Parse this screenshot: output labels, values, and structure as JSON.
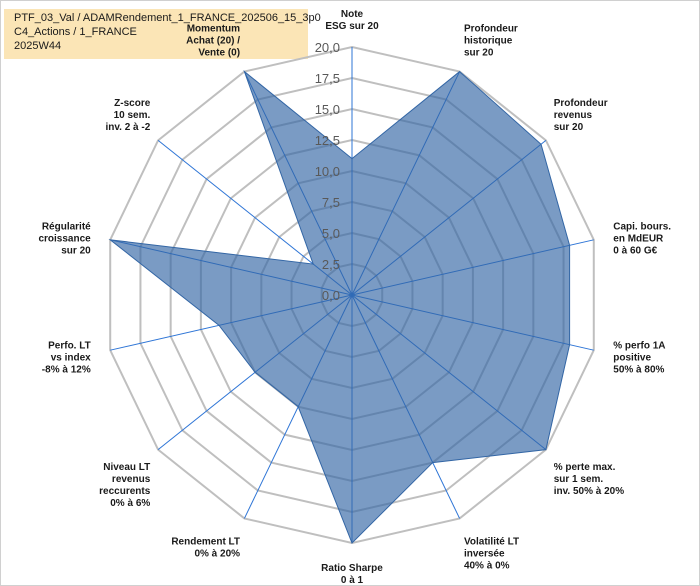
{
  "title": {
    "lines": [
      "PTF_03_Val / ADAMRendement_1_FRANCE_202506_15_3p0",
      "C4_Actions / 1_FRANCE",
      "2025W44"
    ]
  },
  "colors": {
    "fill": "#3366a5",
    "line": "#2e75d6",
    "grid": "#bfbfbf",
    "title_bg": "#fbe5b6"
  },
  "chart_data": {
    "type": "radar",
    "rmin": 0,
    "rmax": 20,
    "ticks": [
      "0,0",
      "2,5",
      "5,0",
      "7,5",
      "10,0",
      "12,5",
      "15,0",
      "17,5",
      "20,0"
    ],
    "categories": [
      [
        "Note",
        "ESG sur 20"
      ],
      [
        "Profondeur",
        "historique",
        "sur 20"
      ],
      [
        "Profondeur",
        "revenus",
        "sur 20"
      ],
      [
        "Capi. bours.",
        "en MdEUR",
        "0 à 60 G€"
      ],
      [
        "% perfo 1A",
        "positive",
        "50% à 80%"
      ],
      [
        "% perte max.",
        "sur 1 sem.",
        "inv. 50% à 20%"
      ],
      [
        "Volatilité LT",
        "inversée",
        "40% à 0%"
      ],
      [
        "Ratio Sharpe",
        "0 à 1"
      ],
      [
        "Rendement LT",
        "0% à 20%"
      ],
      [
        "Niveau LT",
        "revenus",
        "reccurents",
        "0% à 6%"
      ],
      [
        "Perfo. LT",
        "vs index",
        "-8% à 12%"
      ],
      [
        "Régularité",
        "croissance",
        "sur 20"
      ],
      [
        "Z-score",
        "10 sem.",
        "inv. 2 à -2"
      ],
      [
        "Momentum",
        "Achat (20) /",
        "Vente (0)"
      ]
    ],
    "values": [
      11,
      20,
      19.5,
      18,
      18,
      20,
      15,
      20,
      10,
      10,
      11,
      20,
      4,
      20
    ]
  }
}
